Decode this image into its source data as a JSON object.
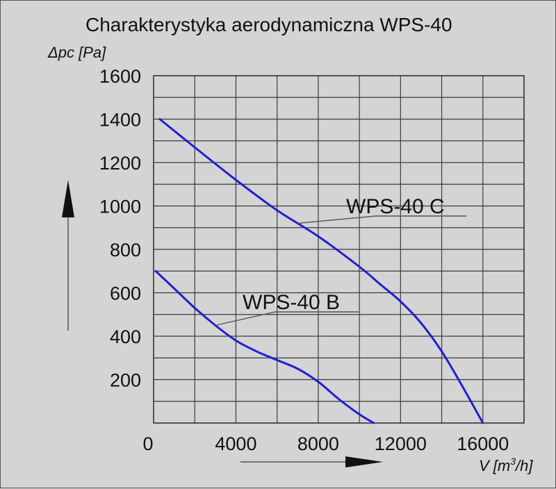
{
  "chart_data": {
    "type": "line",
    "title": "Charakterystyka aerodynamiczna  WPS-40",
    "ylabel": "Δpc [Pa]",
    "xlabel": {
      "prefix": "V [m",
      "sup": "3",
      "suffix": "/h]"
    },
    "xlim": [
      0,
      18000
    ],
    "ylim": [
      0,
      1600
    ],
    "x_ticks": [
      0,
      4000,
      8000,
      12000,
      16000
    ],
    "y_ticks": [
      200,
      400,
      600,
      800,
      1000,
      1200,
      1400,
      1600
    ],
    "x_grid_step": 2000,
    "y_grid_step": 100,
    "grid": true,
    "series": [
      {
        "name": "WPS-40 C",
        "x": [
          300,
          2000,
          4000,
          6000,
          8000,
          10000,
          11000,
          12000,
          13000,
          14000,
          15000,
          16000
        ],
        "y": [
          1400,
          1270,
          1120,
          980,
          860,
          720,
          640,
          560,
          460,
          330,
          170,
          0
        ]
      },
      {
        "name": "WPS-40 B",
        "x": [
          100,
          1000,
          2000,
          3000,
          4000,
          5000,
          6000,
          7000,
          8000,
          9000,
          10000,
          10700
        ],
        "y": [
          700,
          620,
          530,
          450,
          380,
          330,
          290,
          250,
          190,
          110,
          40,
          0
        ]
      }
    ],
    "line_color": "#1f1fd6"
  }
}
